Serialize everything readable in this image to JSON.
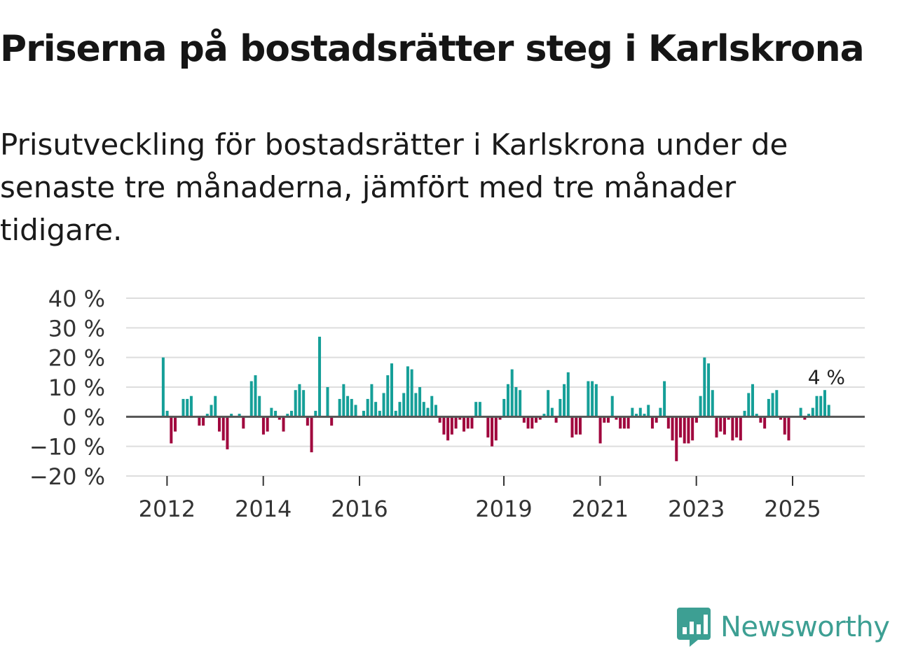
{
  "title": "Priserna på bostadsrätter steg i Karlskrona",
  "subtitle": "Prisutveckling för bostadsrätter i Karlskrona under de senaste tre månaderna, jämfört med tre månader tidigare.",
  "brand": {
    "name": "Newsworthy",
    "icon": "newsworthy-logo-icon"
  },
  "colors": {
    "positive": "#159f98",
    "negative": "#a0053d",
    "grid": "#dddddd",
    "zero_line": "#555555",
    "brand": "#3d9f93"
  },
  "chart_data": {
    "type": "bar",
    "ylim": [
      -20,
      40
    ],
    "yticks": [
      -20,
      -10,
      0,
      10,
      20,
      30,
      40
    ],
    "ytick_labels": [
      "−20 %",
      "−10 %",
      "0 %",
      "10 %",
      "20 %",
      "30 %",
      "40 %"
    ],
    "xticks": [
      2012,
      2014,
      2016,
      2019,
      2021,
      2023,
      2025
    ],
    "xtick_labels": [
      "2012",
      "2014",
      "2016",
      "2019",
      "2021",
      "2023",
      "2025"
    ],
    "xrange": [
      2011.15,
      2026.5
    ],
    "start_year": 2011.92,
    "step": 0.08333,
    "last_label": "4 %",
    "values": [
      20,
      2,
      -9,
      -5,
      0,
      6,
      6,
      7,
      0,
      -3,
      -3,
      1,
      4,
      7,
      -5,
      -8,
      -11,
      1,
      0,
      1,
      -4,
      0,
      12,
      14,
      7,
      -6,
      -5,
      3,
      2,
      -1,
      -5,
      1,
      2,
      9,
      11,
      9,
      -3,
      -12,
      2,
      27,
      0,
      10,
      -3,
      0,
      6,
      11,
      7,
      6,
      4,
      0,
      2,
      6,
      11,
      5,
      2,
      8,
      14,
      18,
      2,
      5,
      8,
      17,
      16,
      8,
      10,
      5,
      3,
      7,
      4,
      -2,
      -6,
      -8,
      -6,
      -4,
      -1,
      -5,
      -4,
      -4,
      5,
      5,
      0,
      -7,
      -10,
      -8,
      -1,
      6,
      11,
      16,
      10,
      9,
      -2,
      -4,
      -4,
      -2,
      -1,
      1,
      9,
      3,
      -2,
      6,
      11,
      15,
      -7,
      -6,
      -6,
      0,
      12,
      12,
      11,
      -9,
      -2,
      -2,
      7,
      -1,
      -4,
      -4,
      -4,
      3,
      1,
      3,
      1,
      4,
      -4,
      -2,
      3,
      12,
      -4,
      -8,
      -15,
      -7,
      -9,
      -9,
      -8,
      -2,
      7,
      20,
      18,
      9,
      -7,
      -5,
      -6,
      -1,
      -8,
      -7,
      -8,
      2,
      8,
      11,
      1,
      -2,
      -4,
      6,
      8,
      9,
      -1,
      -6,
      -8,
      0,
      0,
      3,
      -1,
      1,
      3,
      7,
      7,
      9,
      4
    ]
  }
}
